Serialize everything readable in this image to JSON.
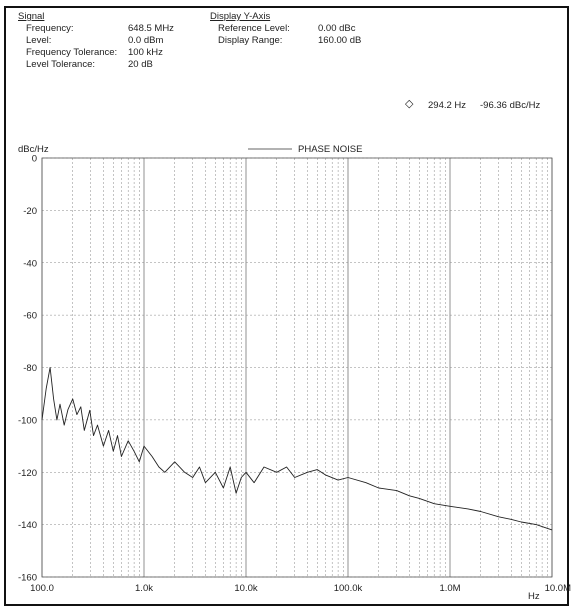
{
  "signal": {
    "heading": "Signal",
    "rows": [
      {
        "label": "Frequency:",
        "value": "648.5 MHz"
      },
      {
        "label": "Level:",
        "value": "0.0 dBm"
      },
      {
        "label": "Frequency Tolerance:",
        "value": "100 kHz"
      },
      {
        "label": "Level Tolerance:",
        "value": "20 dB"
      }
    ]
  },
  "display_y_axis": {
    "heading": "Display Y-Axis",
    "rows": [
      {
        "label": "Reference Level:",
        "value": "0.00 dBc"
      },
      {
        "label": "Display Range:",
        "value": "160.00 dB"
      }
    ]
  },
  "marker": {
    "frequency": "294.2 Hz",
    "level": "-96.36 dBc/Hz",
    "symbol": "◇"
  },
  "chart_data": {
    "type": "line",
    "ylabel": "dBc/Hz",
    "xlabel": "Hz",
    "legend": "PHASE NOISE",
    "legend_position": "top-center",
    "x_scale": "log",
    "xlim": [
      100,
      10000000
    ],
    "ylim": [
      -160,
      0
    ],
    "x_ticks": [
      {
        "value": 100,
        "label": "100.0"
      },
      {
        "value": 1000,
        "label": "1.0k"
      },
      {
        "value": 10000,
        "label": "10.0k"
      },
      {
        "value": 100000,
        "label": "100.0k"
      },
      {
        "value": 1000000,
        "label": "1.0M"
      },
      {
        "value": 10000000,
        "label": "10.0M"
      }
    ],
    "y_ticks": [
      0,
      -20,
      -40,
      -60,
      -80,
      -100,
      -120,
      -140,
      -160
    ],
    "grid": true,
    "series": [
      {
        "name": "PHASE NOISE",
        "x": [
          100,
          110,
          120,
          130,
          140,
          150,
          165,
          180,
          200,
          220,
          240,
          260,
          294.2,
          320,
          350,
          400,
          450,
          500,
          550,
          600,
          700,
          800,
          900,
          1000,
          1200,
          1400,
          1600,
          2000,
          2500,
          3000,
          3500,
          4000,
          5000,
          6000,
          7000,
          8000,
          9000,
          10000,
          12000,
          15000,
          20000,
          25000,
          30000,
          40000,
          50000,
          60000,
          80000,
          100000,
          150000,
          200000,
          300000,
          400000,
          500000,
          700000,
          1000000,
          1500000,
          2000000,
          3000000,
          4000000,
          5000000,
          7000000,
          10000000
        ],
        "y": [
          -100,
          -88,
          -80,
          -92,
          -100,
          -94,
          -102,
          -96,
          -92,
          -98,
          -95,
          -104,
          -96.36,
          -106,
          -102,
          -110,
          -104,
          -112,
          -106,
          -114,
          -108,
          -112,
          -116,
          -110,
          -114,
          -118,
          -120,
          -116,
          -120,
          -122,
          -118,
          -124,
          -120,
          -126,
          -118,
          -128,
          -122,
          -120,
          -124,
          -118,
          -120,
          -118,
          -122,
          -120,
          -119,
          -121,
          -123,
          -122,
          -124,
          -126,
          -127,
          -129,
          -130,
          -132,
          -133,
          -134,
          -135,
          -137,
          -138,
          -139,
          -140,
          -142
        ]
      }
    ]
  }
}
